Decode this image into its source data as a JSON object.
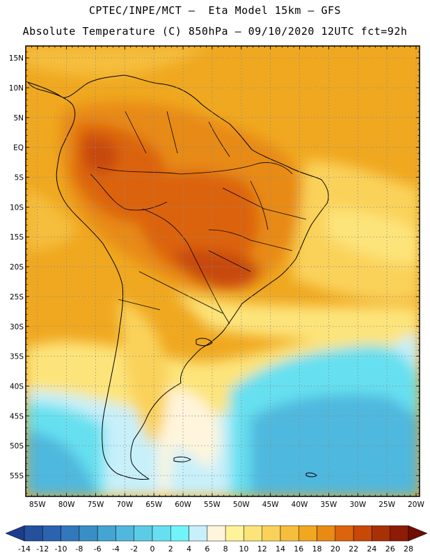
{
  "header": {
    "line1": "CPTEC/INPE/MCT –  Eta Model 15km – GFS",
    "line2": "Absolute Temperature (C) 850hPa – 09/10/2020 12UTC fct=92h"
  },
  "map": {
    "lat_labels": [
      "15N",
      "10N",
      "5N",
      "EQ",
      "5S",
      "10S",
      "15S",
      "20S",
      "25S",
      "30S",
      "35S",
      "40S",
      "45S",
      "50S",
      "55S"
    ],
    "lon_labels": [
      "85W",
      "80W",
      "75W",
      "70W",
      "65W",
      "60W",
      "55W",
      "50W",
      "45W",
      "40W",
      "35W",
      "30W",
      "25W",
      "20W"
    ],
    "lat_values": [
      15,
      10,
      5,
      0,
      -5,
      -10,
      -15,
      -20,
      -25,
      -30,
      -35,
      -40,
      -45,
      -50,
      -55
    ],
    "lon_values": [
      -85,
      -80,
      -75,
      -70,
      -65,
      -60,
      -55,
      -50,
      -45,
      -40,
      -35,
      -30,
      -25,
      -20
    ]
  },
  "colorbar": {
    "labels": [
      "-14",
      "-12",
      "-10",
      "-8",
      "-6",
      "-4",
      "-2",
      "0",
      "2",
      "4",
      "6",
      "8",
      "10",
      "12",
      "14",
      "16",
      "18",
      "20",
      "22",
      "24",
      "26",
      "28"
    ],
    "colors": [
      "#1e3c8c",
      "#24509e",
      "#2a64ae",
      "#3278bc",
      "#3a8ec6",
      "#44a4d2",
      "#50b8de",
      "#5ccce6",
      "#66e0f0",
      "#70f4fa",
      "#c8f0fa",
      "#fff5dc",
      "#fff39a",
      "#fde47a",
      "#fad25a",
      "#f5be3c",
      "#f0a820",
      "#e88a14",
      "#dc640c",
      "#c84808",
      "#a83006",
      "#8c1c04",
      "#6e0e02"
    ]
  }
}
